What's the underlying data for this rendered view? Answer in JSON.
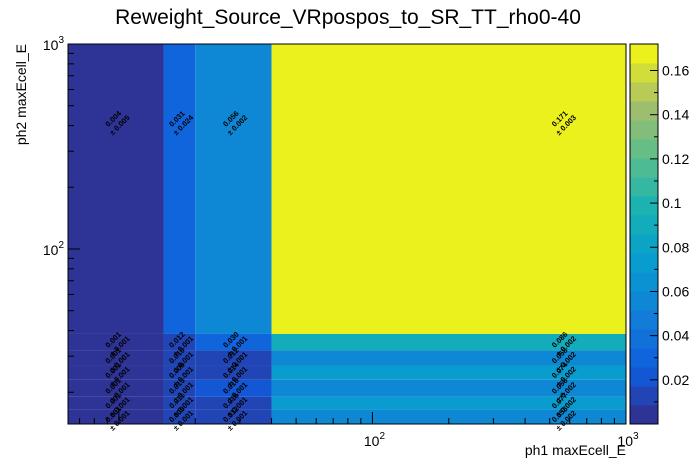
{
  "chart_data": {
    "type": "heatmap",
    "title": "Reweight_Source_VRpospos_to_SR_TT_rho0-40",
    "xlabel": "ph1 maxEcell_E",
    "ylabel": "ph2 maxEcell_E",
    "x_scale": "log",
    "y_scale": "log",
    "x_ticks": [
      {
        "base": "10",
        "exp": "2",
        "value": 100
      },
      {
        "base": "10",
        "exp": "3",
        "value": 1000
      }
    ],
    "y_ticks": [
      {
        "base": "10",
        "exp": "2",
        "value": 100
      },
      {
        "base": "10",
        "exp": "3",
        "value": 1000
      }
    ],
    "xlim": [
      6.3,
      1000
    ],
    "ylim": [
      14,
      1000
    ],
    "x_edges": [
      6.3,
      15,
      20,
      40,
      1000
    ],
    "y_edges": [
      14,
      16.5,
      19,
      23,
      27,
      32,
      38.5,
      1000
    ],
    "colorbar": {
      "range": [
        0.0,
        0.172
      ],
      "ticks": [
        "0.02",
        "0.04",
        "0.06",
        "0.08",
        "0.1",
        "0.12",
        "0.14",
        "0.16"
      ],
      "tick_values": [
        0.02,
        0.04,
        0.06,
        0.08,
        0.1,
        0.12,
        0.14,
        0.16
      ]
    },
    "cells": [
      {
        "col": 0,
        "row": 0,
        "v": 0.001,
        "label": "0.001",
        "err": "± 0.001"
      },
      {
        "col": 0,
        "row": 1,
        "v": 0.001,
        "label": "0.001",
        "err": "± 0.001"
      },
      {
        "col": 0,
        "row": 2,
        "v": 0.001,
        "label": "0.001",
        "err": "± 0.001"
      },
      {
        "col": 0,
        "row": 3,
        "v": 0.001,
        "label": "0.001",
        "err": "± 0.001"
      },
      {
        "col": 0,
        "row": 4,
        "v": 0.001,
        "label": "0.001",
        "err": "± 0.001"
      },
      {
        "col": 0,
        "row": 5,
        "v": 0.001,
        "label": "0.001",
        "err": "± 0.001"
      },
      {
        "col": 0,
        "row": 6,
        "v": 0.004,
        "label": "0.004",
        "err": "± 0.005"
      },
      {
        "col": 1,
        "row": 0,
        "v": 0.009,
        "label": "0.009",
        "err": "± 0.001"
      },
      {
        "col": 1,
        "row": 1,
        "v": 0.011,
        "label": "0.011",
        "err": "± 0.001"
      },
      {
        "col": 1,
        "row": 2,
        "v": 0.013,
        "label": "0.013",
        "err": "± 0.001"
      },
      {
        "col": 1,
        "row": 3,
        "v": 0.009,
        "label": "0.009",
        "err": "± 0.001"
      },
      {
        "col": 1,
        "row": 4,
        "v": 0.01,
        "label": "0.010",
        "err": "± 0.001"
      },
      {
        "col": 1,
        "row": 5,
        "v": 0.012,
        "label": "0.012",
        "err": "± 0.001"
      },
      {
        "col": 1,
        "row": 6,
        "v": 0.031,
        "label": "0.031",
        "err": "± 0.024"
      },
      {
        "col": 2,
        "row": 0,
        "v": 0.012,
        "label": "0.012",
        "err": "± 0.001"
      },
      {
        "col": 2,
        "row": 1,
        "v": 0.015,
        "label": "0.015",
        "err": "± 0.001"
      },
      {
        "col": 2,
        "row": 2,
        "v": 0.018,
        "label": "0.018",
        "err": "± 0.001"
      },
      {
        "col": 2,
        "row": 3,
        "v": 0.014,
        "label": "0.014",
        "err": "± 0.001"
      },
      {
        "col": 2,
        "row": 4,
        "v": 0.012,
        "label": "0.012",
        "err": "± 0.001"
      },
      {
        "col": 2,
        "row": 5,
        "v": 0.03,
        "label": "0.030",
        "err": "± 0.001"
      },
      {
        "col": 2,
        "row": 6,
        "v": 0.056,
        "label": "0.056",
        "err": "± 0.002"
      },
      {
        "col": 3,
        "row": 0,
        "v": 0.058,
        "label": "0.058",
        "err": "± 0.002"
      },
      {
        "col": 3,
        "row": 1,
        "v": 0.077,
        "label": "0.077",
        "err": "± 0.002"
      },
      {
        "col": 3,
        "row": 2,
        "v": 0.058,
        "label": "0.058",
        "err": "± 0.002"
      },
      {
        "col": 3,
        "row": 3,
        "v": 0.074,
        "label": "0.074",
        "err": "± 0.002"
      },
      {
        "col": 3,
        "row": 4,
        "v": 0.058,
        "label": "0.058",
        "err": "± 0.002"
      },
      {
        "col": 3,
        "row": 5,
        "v": 0.086,
        "label": "0.086",
        "err": "± 0.002"
      },
      {
        "col": 3,
        "row": 6,
        "v": 0.171,
        "label": "0.171",
        "err": "± 0.003"
      }
    ]
  }
}
